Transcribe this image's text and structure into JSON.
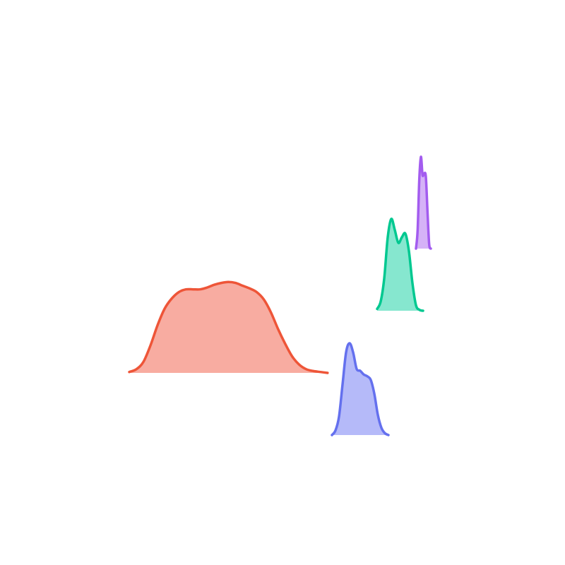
{
  "chart_data": {
    "type": "ridgeline",
    "title": "",
    "xlabel": "",
    "ylabel": "",
    "grid": false,
    "legend": "none",
    "series": [
      {
        "color_line": "#ee5538",
        "color_fill": "#f8a89c",
        "x": [
          0,
          2,
          4,
          6,
          8,
          10,
          12,
          14,
          16,
          18,
          20,
          22,
          24,
          26,
          28,
          30,
          32,
          34,
          36,
          38,
          40,
          42,
          44,
          46,
          48,
          50,
          52,
          54,
          56,
          58,
          60,
          62,
          64,
          66,
          68,
          70
        ],
        "density": [
          0.01,
          0.04,
          0.12,
          0.3,
          0.52,
          0.7,
          0.81,
          0.88,
          0.91,
          0.91,
          0.91,
          0.93,
          0.96,
          0.98,
          0.99,
          0.98,
          0.95,
          0.92,
          0.88,
          0.8,
          0.66,
          0.48,
          0.32,
          0.18,
          0.09,
          0.04,
          0.02,
          0.01,
          0.0,
          0.0,
          0.0,
          0.0,
          0.0,
          0.0,
          0.0,
          0.0
        ]
      },
      {
        "color_line": "#6470ee",
        "color_fill": "#b1b6f9",
        "x": [
          59,
          60,
          61,
          62,
          63,
          64,
          65,
          66,
          67,
          68,
          69,
          70,
          71,
          72,
          73,
          74,
          75,
          76,
          77,
          78
        ],
        "density": [
          0.0,
          0.05,
          0.2,
          0.55,
          0.9,
          1.0,
          0.9,
          0.72,
          0.7,
          0.66,
          0.64,
          0.6,
          0.45,
          0.22,
          0.08,
          0.02,
          0.0,
          0.0,
          0.0,
          0.0
        ]
      },
      {
        "color_line": "#00c890",
        "color_fill": "#80e6cc",
        "x": [
          72,
          73,
          74,
          75,
          76,
          77,
          78,
          79,
          80,
          81,
          82,
          83,
          84,
          85,
          86,
          87
        ],
        "density": [
          0.02,
          0.1,
          0.35,
          0.8,
          1.0,
          0.88,
          0.74,
          0.8,
          0.84,
          0.65,
          0.3,
          0.06,
          0.01,
          0.0,
          0.0,
          0.0
        ]
      },
      {
        "color_line": "#a35cef",
        "color_fill": "#d3aef7",
        "x": [
          83.0,
          83.5,
          84.0,
          84.5,
          85.0,
          85.5,
          86.0,
          86.5,
          87.0,
          87.5,
          88.0,
          88.5,
          89.0
        ],
        "density": [
          0.0,
          0.2,
          0.75,
          1.0,
          0.8,
          0.82,
          0.78,
          0.4,
          0.05,
          0.0,
          0.0,
          0.0,
          0.0
        ]
      }
    ]
  }
}
